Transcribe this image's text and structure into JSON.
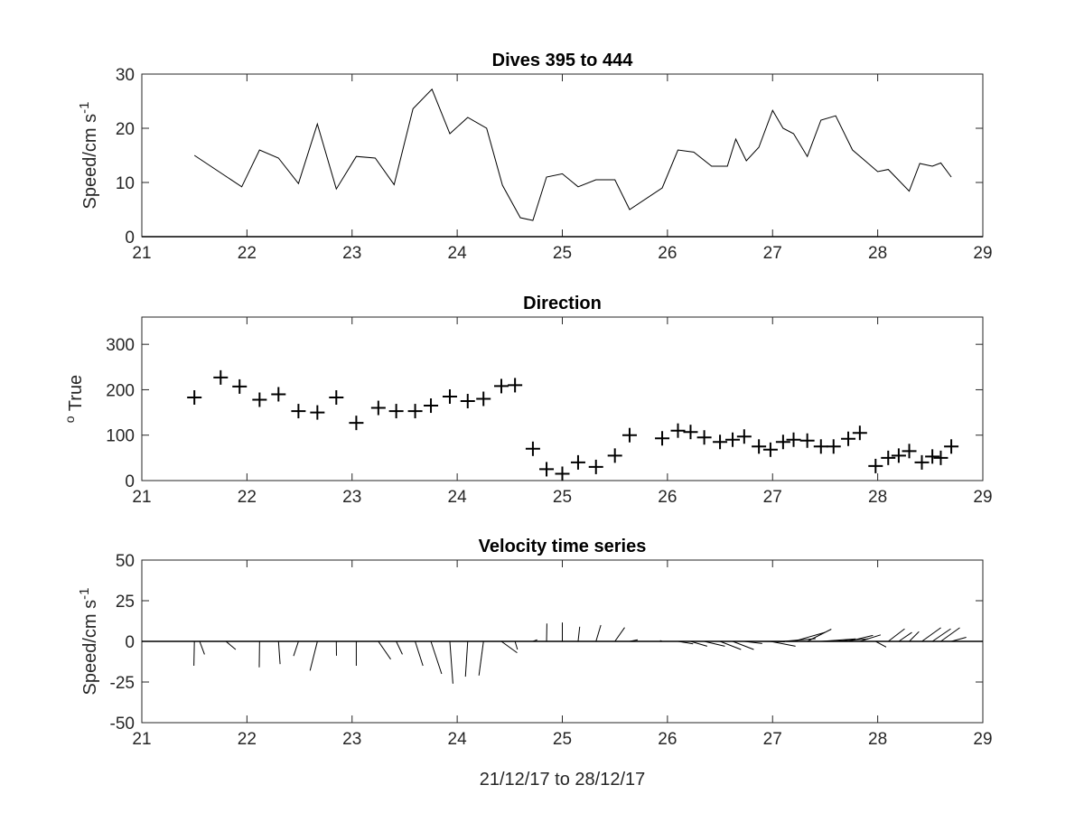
{
  "figure": {
    "xlabel": "21/12/17 to 28/12/17"
  },
  "chart_data": [
    {
      "type": "line",
      "title": "Dives 395 to 444",
      "ylabel": "Speed/cm s",
      "ylabel_sup": "-1",
      "xlim": [
        21,
        29
      ],
      "ylim": [
        0,
        30
      ],
      "xticks": [
        21,
        22,
        23,
        24,
        25,
        26,
        27,
        28,
        29
      ],
      "yticks": [
        0,
        10,
        20,
        30
      ],
      "color": "#000000",
      "x": [
        21.5,
        21.95,
        22.12,
        22.3,
        22.49,
        22.67,
        22.85,
        23.04,
        23.22,
        23.4,
        23.58,
        23.76,
        23.93,
        24.1,
        24.28,
        24.43,
        24.6,
        24.72,
        24.85,
        25.0,
        25.15,
        25.32,
        25.5,
        25.64,
        25.95,
        26.1,
        26.25,
        26.42,
        26.57,
        26.65,
        26.75,
        26.87,
        27.0,
        27.1,
        27.2,
        27.33,
        27.46,
        27.6,
        27.76,
        27.88,
        28.0,
        28.1,
        28.3,
        28.4,
        28.52,
        28.6,
        28.7
      ],
      "y": [
        15,
        9.2,
        16,
        14.5,
        9.8,
        20.8,
        8.8,
        14.8,
        14.5,
        9.6,
        23.6,
        27.2,
        19,
        22,
        20,
        9.5,
        3.5,
        3,
        11,
        11.6,
        9.2,
        10.5,
        10.5,
        5,
        9,
        16,
        15.6,
        13,
        13,
        18,
        14,
        16.5,
        23.3,
        20,
        19,
        14.8,
        21.5,
        22.3,
        16,
        14,
        12,
        12.4,
        8.4,
        13.5,
        13,
        13.6,
        11
      ]
    },
    {
      "type": "scatter",
      "title": "Direction",
      "ylabel": "True",
      "ylabel_sup": "o",
      "marker": "+",
      "xlim": [
        21,
        29
      ],
      "ylim": [
        0,
        360
      ],
      "xticks": [
        21,
        22,
        23,
        24,
        25,
        26,
        27,
        28,
        29
      ],
      "yticks": [
        0,
        100,
        200,
        300
      ],
      "color": "#000000",
      "x": [
        21.5,
        21.75,
        21.93,
        22.12,
        22.3,
        22.49,
        22.67,
        22.85,
        23.04,
        23.25,
        23.42,
        23.6,
        23.75,
        23.93,
        24.1,
        24.25,
        24.42,
        24.55,
        24.72,
        24.85,
        25.0,
        25.15,
        25.32,
        25.5,
        25.64,
        25.95,
        26.1,
        26.22,
        26.35,
        26.5,
        26.62,
        26.73,
        26.87,
        26.98,
        27.1,
        27.2,
        27.33,
        27.46,
        27.58,
        27.72,
        27.83,
        27.98,
        28.1,
        28.2,
        28.3,
        28.42,
        28.52,
        28.6,
        28.7
      ],
      "y": [
        183,
        227,
        207,
        178,
        190,
        153,
        150,
        183,
        127,
        160,
        153,
        153,
        165,
        185,
        175,
        180,
        208,
        210,
        70,
        25,
        15,
        40,
        30,
        55,
        100,
        93,
        110,
        107,
        95,
        85,
        90,
        97,
        75,
        68,
        85,
        90,
        88,
        75,
        75,
        92,
        105,
        32,
        50,
        55,
        65,
        40,
        53,
        50,
        75
      ]
    },
    {
      "type": "quiver",
      "title": "Velocity time series",
      "ylabel": "Speed/cm s",
      "ylabel_sup": "-1",
      "xlim": [
        21,
        29
      ],
      "ylim": [
        -50,
        50
      ],
      "xticks": [
        21,
        22,
        23,
        24,
        25,
        26,
        27,
        28,
        29
      ],
      "yticks": [
        -50,
        -25,
        0,
        25,
        50
      ],
      "color": "#000000",
      "x": [
        21.5,
        21.55,
        21.8,
        22.12,
        22.3,
        22.49,
        22.67,
        22.85,
        23.04,
        23.25,
        23.42,
        23.6,
        23.75,
        23.93,
        24.1,
        24.25,
        24.42,
        24.55,
        24.72,
        24.85,
        25.0,
        25.15,
        25.32,
        25.5,
        25.64,
        25.95,
        26.1,
        26.22,
        26.35,
        26.5,
        26.62,
        26.73,
        26.87,
        26.98,
        27.1,
        27.2,
        27.33,
        27.46,
        27.58,
        27.72,
        27.83,
        27.98,
        28.1,
        28.2,
        28.3,
        28.42,
        28.52,
        28.6,
        28.7
      ],
      "u": [
        -0.3,
        3,
        6,
        -0.2,
        1,
        -3,
        -4.5,
        0.1,
        0,
        7.6,
        3.8,
        4.8,
        6.6,
        1.9,
        -1.4,
        -2.8,
        9.7,
        1.5,
        2.7,
        0.2,
        0.0,
        1.0,
        3.0,
        6.0,
        5.0,
        -1.3,
        9.3,
        10.2,
        12.7,
        12.9,
        13.0,
        11.1,
        15.9,
        15.4,
        20.0,
        19.2,
        14.8,
        21.4,
        21.4,
        15.2,
        12.8,
        6.5,
        10.1,
        8.1,
        6.0,
        11.7,
        11.3,
        11.7,
        9.2
      ],
      "v": [
        -15,
        -8,
        -5,
        -16,
        -14,
        -9,
        -18,
        -8.8,
        -15,
        -11,
        -8,
        -15,
        -20,
        -26,
        -21.7,
        -21,
        -7,
        -5,
        1,
        11,
        11.6,
        9,
        10,
        8.5,
        1,
        0.5,
        -1.5,
        -3.0,
        -3.0,
        -5.0,
        -5.0,
        -1.3,
        -0.3,
        -3.0,
        1.7,
        5.5,
        7.5,
        1.5,
        1.5,
        3.7,
        4.0,
        -3.5,
        7.7,
        5.5,
        6.0,
        8.4,
        7.7,
        8.4,
        2.5
      ]
    }
  ]
}
